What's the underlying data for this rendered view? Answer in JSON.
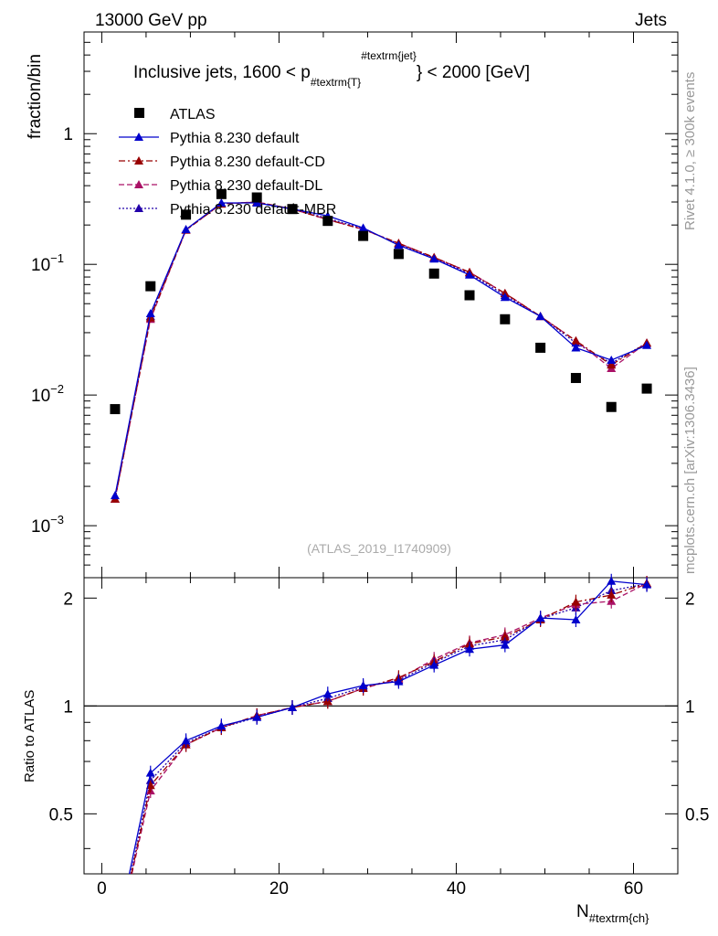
{
  "header": {
    "left": "13000 GeV pp",
    "right": "Jets"
  },
  "side_labels": {
    "rivet": "Rivet 4.1.0, ≥ 300k events",
    "mcplots": "mcplots.cern.ch [arXiv:1306.3436]"
  },
  "watermark": "(ATLAS_2019_I1740909)",
  "chart_data": {
    "type": "scatter",
    "title_parts": {
      "pre": "Inclusive jets, 1600 < p",
      "sub": "#textrm{T}",
      "sup": "#textrm{jet}",
      "post": "} < 2000 [GeV]"
    },
    "xlabel": "N",
    "xlabel_sub": "#textrm{ch}",
    "ylabel": "fraction/bin",
    "ratio_ylabel": "Ratio to ATLAS",
    "xlim": [
      -2,
      65
    ],
    "ylim": [
      0.0004,
      6
    ],
    "yscale": "log",
    "ratio_ylim": [
      0.34,
      2.28
    ],
    "x_ticks": [
      "0",
      "20",
      "40",
      "60"
    ],
    "y_ticks": [
      "1",
      "10",
      "10",
      "10"
    ],
    "y_tick_exponents": [
      "",
      "−1",
      "−2",
      "−3"
    ],
    "ratio_ticks": [
      "0.5",
      "1",
      "2"
    ],
    "x": [
      1.5,
      5.5,
      9.5,
      13.5,
      17.5,
      21.5,
      25.5,
      29.5,
      33.5,
      37.5,
      41.5,
      45.5,
      49.5,
      53.5,
      57.5,
      61.5
    ],
    "series": [
      {
        "name": "ATLAS",
        "color": "#000000",
        "values": [
          0.0078,
          0.068,
          0.24,
          0.345,
          0.325,
          0.265,
          0.215,
          0.165,
          0.12,
          0.085,
          0.058,
          0.038,
          0.023,
          0.0135,
          0.0081,
          0.0112
        ]
      },
      {
        "name": "Pythia 8.230 default",
        "color": "#0000cc",
        "style": "solid",
        "values": [
          0.0017,
          0.042,
          0.185,
          0.295,
          0.295,
          0.265,
          0.235,
          0.19,
          0.14,
          0.11,
          0.083,
          0.056,
          0.04,
          0.023,
          0.0185,
          0.024
        ],
        "ratio": [
          0.22,
          0.65,
          0.8,
          0.88,
          0.93,
          0.99,
          1.08,
          1.14,
          1.17,
          1.3,
          1.44,
          1.48,
          1.76,
          1.74,
          2.23,
          2.18
        ]
      },
      {
        "name": "Pythia 8.230 default-CD",
        "color": "#990000",
        "style": "dashdot",
        "values": [
          0.0016,
          0.039,
          0.183,
          0.29,
          0.3,
          0.265,
          0.22,
          0.185,
          0.145,
          0.113,
          0.087,
          0.06,
          0.04,
          0.026,
          0.017,
          0.025
        ],
        "ratio": [
          0.21,
          0.6,
          0.78,
          0.87,
          0.94,
          0.99,
          1.03,
          1.12,
          1.2,
          1.33,
          1.49,
          1.56,
          1.74,
          1.95,
          2.04,
          2.2
        ]
      },
      {
        "name": "Pythia 8.230 default-DL",
        "color": "#aa1166",
        "style": "dashed",
        "values": [
          0.0016,
          0.038,
          0.183,
          0.29,
          0.3,
          0.265,
          0.22,
          0.185,
          0.145,
          0.113,
          0.087,
          0.06,
          0.04,
          0.026,
          0.016,
          0.025
        ],
        "ratio": [
          0.21,
          0.58,
          0.78,
          0.87,
          0.94,
          0.99,
          1.03,
          1.12,
          1.19,
          1.35,
          1.5,
          1.58,
          1.76,
          1.92,
          1.96,
          2.2
        ]
      },
      {
        "name": "Pythia 8.230 default-MBR",
        "color": "#2200aa",
        "style": "dotted",
        "values": [
          0.0016,
          0.04,
          0.184,
          0.292,
          0.298,
          0.265,
          0.225,
          0.187,
          0.143,
          0.112,
          0.085,
          0.058,
          0.04,
          0.025,
          0.0175,
          0.025
        ],
        "ratio": [
          0.21,
          0.62,
          0.79,
          0.87,
          0.93,
          0.99,
          1.05,
          1.13,
          1.18,
          1.32,
          1.47,
          1.53,
          1.75,
          1.88,
          2.1,
          2.19
        ]
      }
    ]
  }
}
